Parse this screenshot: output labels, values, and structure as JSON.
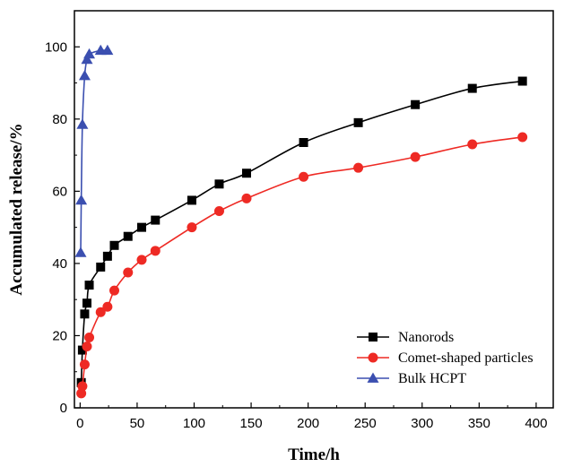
{
  "chart_data": {
    "type": "line",
    "title": "",
    "xlabel": "Time/h",
    "ylabel": "Accumulated release/%",
    "xlim": [
      -5,
      415
    ],
    "ylim": [
      0,
      110
    ],
    "xticks": [
      0,
      50,
      100,
      150,
      200,
      250,
      300,
      350,
      400
    ],
    "yticks": [
      0,
      20,
      40,
      60,
      80,
      100
    ],
    "grid": false,
    "legend_position": "bottom-right",
    "series": [
      {
        "name": "Nanorods",
        "color": "#000000",
        "marker": "square",
        "x": [
          1,
          2,
          4,
          6,
          8,
          18,
          24,
          30,
          42,
          54,
          66,
          98,
          122,
          146,
          196,
          244,
          294,
          344,
          388
        ],
        "y": [
          7,
          16,
          26,
          29,
          34,
          39,
          42,
          45,
          47.5,
          50,
          52,
          57.5,
          62,
          65,
          73.5,
          79,
          84,
          88.5,
          90.5
        ]
      },
      {
        "name": "Comet-shaped particles",
        "color": "#ee2a24",
        "marker": "circle",
        "x": [
          1,
          2,
          4,
          6,
          8,
          18,
          24,
          30,
          42,
          54,
          66,
          98,
          122,
          146,
          196,
          244,
          294,
          344,
          388
        ],
        "y": [
          4,
          6,
          12,
          17,
          19.5,
          26.5,
          28,
          32.5,
          37.5,
          41,
          43.5,
          50,
          54.5,
          58,
          64,
          66.5,
          69.5,
          73,
          75
        ]
      },
      {
        "name": "Bulk HCPT",
        "color": "#3b4fb0",
        "marker": "triangle",
        "x": [
          0.5,
          1,
          2,
          4,
          6,
          8,
          18,
          24
        ],
        "y": [
          43,
          57.5,
          78.5,
          92,
          96.5,
          98,
          99,
          99
        ]
      }
    ]
  }
}
